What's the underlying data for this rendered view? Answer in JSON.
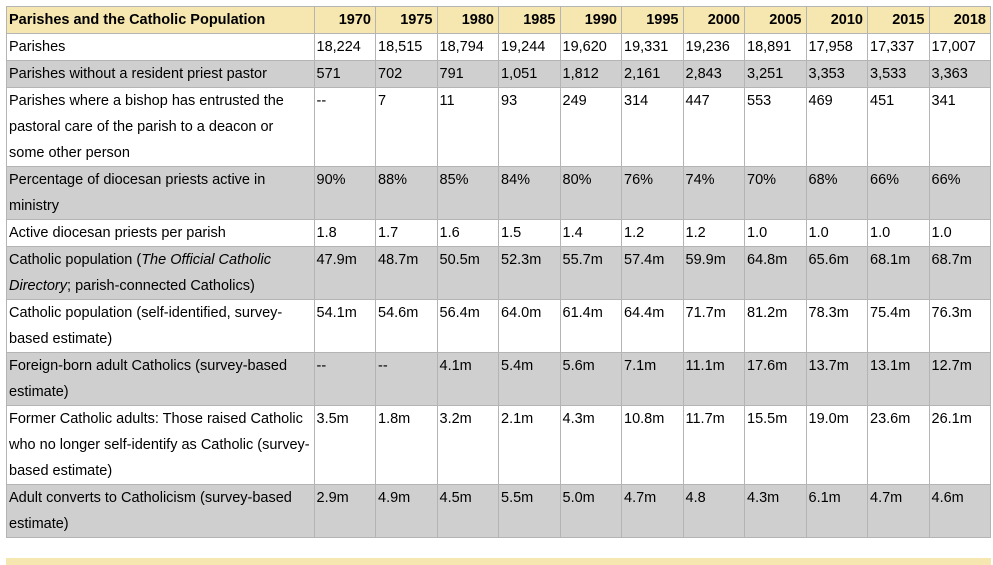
{
  "table": {
    "header": [
      "Parishes and the Catholic Population",
      "1970",
      "1975",
      "1980",
      "1985",
      "1990",
      "1995",
      "2000",
      "2005",
      "2010",
      "2015",
      "2018"
    ],
    "rows": [
      {
        "label": "Parishes",
        "values": [
          "18,224",
          "18,515",
          "18,794",
          "19,244",
          "19,620",
          "19,331",
          "19,236",
          "18,891",
          "17,958",
          "17,337",
          "17,007"
        ]
      },
      {
        "label": "Parishes without a resident priest pastor",
        "values": [
          "571",
          "702",
          "791",
          "1,051",
          "1,812",
          "2,161",
          "2,843",
          "3,251",
          "3,353",
          "3,533",
          "3,363"
        ]
      },
      {
        "label": "Parishes where a bishop has entrusted the pastoral care of the parish to a deacon or some other person",
        "values": [
          "--",
          "7",
          "11",
          "93",
          "249",
          "314",
          "447",
          "553",
          "469",
          "451",
          "341"
        ]
      },
      {
        "label": "Percentage of diocesan priests active in ministry",
        "values": [
          "90%",
          "88%",
          "85%",
          "84%",
          "80%",
          "76%",
          "74%",
          "70%",
          "68%",
          "66%",
          "66%"
        ]
      },
      {
        "label": "Active diocesan priests per parish",
        "values": [
          "1.8",
          "1.7",
          "1.6",
          "1.5",
          "1.4",
          "1.2",
          "1.2",
          "1.0",
          "1.0",
          "1.0",
          "1.0"
        ]
      },
      {
        "label_pre": "Catholic population (",
        "label_italic": "The Official Catholic Directory",
        "label_post": "; parish-connected Catholics)",
        "values": [
          "47.9m",
          "48.7m",
          "50.5m",
          "52.3m",
          "55.7m",
          "57.4m",
          "59.9m",
          "64.8m",
          "65.6m",
          "68.1m",
          "68.7m"
        ]
      },
      {
        "label": "Catholic population (self-identified, survey-based estimate)",
        "values": [
          "54.1m",
          "54.6m",
          "56.4m",
          "64.0m",
          "61.4m",
          "64.4m",
          "71.7m",
          "81.2m",
          "78.3m",
          "75.4m",
          "76.3m"
        ]
      },
      {
        "label": "Foreign-born adult Catholics (survey-based estimate)",
        "values": [
          "--",
          "--",
          "4.1m",
          "5.4m",
          "5.6m",
          "7.1m",
          "11.1m",
          "17.6m",
          "13.7m",
          "13.1m",
          "12.7m"
        ]
      },
      {
        "label": "Former Catholic adults: Those raised Catholic who no longer self-identify as Catholic (survey-based estimate)",
        "values": [
          "3.5m",
          "1.8m",
          "3.2m",
          "2.1m",
          "4.3m",
          "10.8m",
          "11.7m",
          "15.5m",
          "19.0m",
          "23.6m",
          "26.1m"
        ]
      },
      {
        "label": "Adult converts to Catholicism (survey-based estimate)",
        "values": [
          "2.9m",
          "4.9m",
          "4.5m",
          "5.5m",
          "5.0m",
          "4.7m",
          "4.8",
          "4.3m",
          "6.1m",
          "4.7m",
          "4.6m"
        ]
      }
    ]
  },
  "colors": {
    "header_bg": "#f6e7b0",
    "stripe_bg": "#cfcfcf",
    "border": "#b4b4b4"
  }
}
